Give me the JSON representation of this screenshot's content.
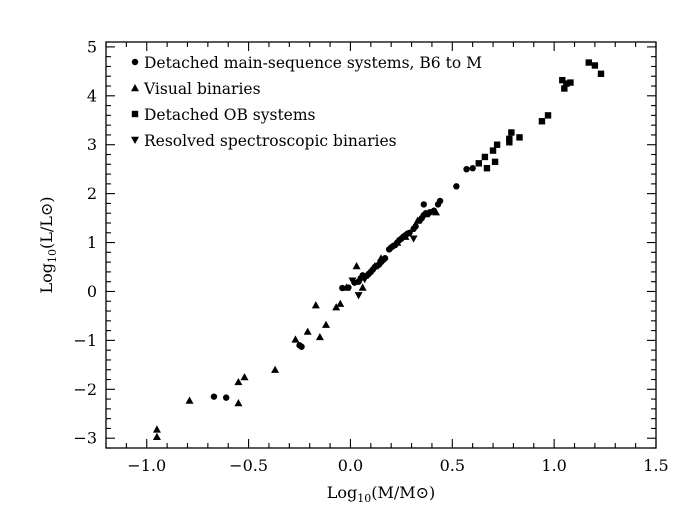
{
  "chart_data": {
    "type": "scatter",
    "xlabel": "Log10(M/M⊙)",
    "ylabel": "Log10(L/L⊙)",
    "xlim": [
      -1.2,
      1.5
    ],
    "ylim": [
      -3.2,
      5.1
    ],
    "x_ticks": [
      -1.0,
      -0.5,
      0.0,
      0.5,
      1.0,
      1.5
    ],
    "x_tick_labels": [
      "−1.0",
      "−0.5",
      "0.0",
      "0.5",
      "1.0",
      "1.5"
    ],
    "y_ticks": [
      -3,
      -2,
      -1,
      0,
      1,
      2,
      3,
      4,
      5
    ],
    "y_tick_labels": [
      "−3",
      "−2",
      "−1",
      "0",
      "1",
      "2",
      "3",
      "4",
      "5"
    ],
    "grid": false,
    "legend_position": "top-left",
    "marker_color": "#000000",
    "series": [
      {
        "name": "Detached main-sequence systems, B6 to M",
        "marker": "circle",
        "points": [
          [
            -0.67,
            -2.15
          ],
          [
            -0.61,
            -2.17
          ],
          [
            -0.24,
            -1.13
          ],
          [
            -0.25,
            -1.1
          ],
          [
            -0.04,
            0.07
          ],
          [
            -0.01,
            0.08
          ],
          [
            0.02,
            0.18
          ],
          [
            0.04,
            0.2
          ],
          [
            0.05,
            0.27
          ],
          [
            0.06,
            0.33
          ],
          [
            0.08,
            0.32
          ],
          [
            0.09,
            0.36
          ],
          [
            0.1,
            0.4
          ],
          [
            0.11,
            0.45
          ],
          [
            0.12,
            0.5
          ],
          [
            0.13,
            0.52
          ],
          [
            0.14,
            0.55
          ],
          [
            0.15,
            0.6
          ],
          [
            0.16,
            0.64
          ],
          [
            0.17,
            0.68
          ],
          [
            0.19,
            0.86
          ],
          [
            0.2,
            0.9
          ],
          [
            0.21,
            0.93
          ],
          [
            0.22,
            0.95
          ],
          [
            0.23,
            1.0
          ],
          [
            0.24,
            1.05
          ],
          [
            0.25,
            1.08
          ],
          [
            0.26,
            1.12
          ],
          [
            0.27,
            1.15
          ],
          [
            0.28,
            1.18
          ],
          [
            0.29,
            1.2
          ],
          [
            0.31,
            1.28
          ],
          [
            0.32,
            1.33
          ],
          [
            0.34,
            1.45
          ],
          [
            0.35,
            1.5
          ],
          [
            0.36,
            1.56
          ],
          [
            0.37,
            1.6
          ],
          [
            0.38,
            1.58
          ],
          [
            0.39,
            1.62
          ],
          [
            0.41,
            1.65
          ],
          [
            0.43,
            1.78
          ],
          [
            0.44,
            1.85
          ],
          [
            0.36,
            1.78
          ],
          [
            0.52,
            2.15
          ],
          [
            0.57,
            2.5
          ],
          [
            0.6,
            2.52
          ]
        ]
      },
      {
        "name": "Visual binaries",
        "marker": "triangle-up",
        "points": [
          [
            -0.95,
            -2.82
          ],
          [
            -0.95,
            -2.97
          ],
          [
            -0.79,
            -2.23
          ],
          [
            -0.55,
            -1.85
          ],
          [
            -0.52,
            -1.75
          ],
          [
            -0.55,
            -2.28
          ],
          [
            -0.37,
            -1.6
          ],
          [
            -0.27,
            -0.98
          ],
          [
            -0.21,
            -0.82
          ],
          [
            -0.15,
            -0.93
          ],
          [
            -0.17,
            -0.28
          ],
          [
            -0.12,
            -0.68
          ],
          [
            -0.07,
            -0.32
          ],
          [
            -0.05,
            -0.25
          ],
          [
            -0.02,
            0.08
          ],
          [
            0.03,
            0.52
          ],
          [
            0.06,
            0.08
          ],
          [
            0.12,
            0.52
          ],
          [
            0.15,
            0.68
          ],
          [
            0.23,
            1.0
          ],
          [
            0.27,
            1.12
          ],
          [
            0.33,
            1.45
          ],
          [
            0.42,
            1.62
          ]
        ]
      },
      {
        "name": "Detached OB systems",
        "marker": "square",
        "points": [
          [
            0.63,
            2.62
          ],
          [
            0.66,
            2.75
          ],
          [
            0.67,
            2.52
          ],
          [
            0.7,
            2.88
          ],
          [
            0.71,
            2.65
          ],
          [
            0.72,
            3.0
          ],
          [
            0.78,
            3.12
          ],
          [
            0.79,
            3.25
          ],
          [
            0.78,
            3.05
          ],
          [
            0.83,
            3.15
          ],
          [
            0.94,
            3.48
          ],
          [
            0.97,
            3.6
          ],
          [
            1.04,
            4.32
          ],
          [
            1.05,
            4.15
          ],
          [
            1.06,
            4.25
          ],
          [
            1.08,
            4.27
          ],
          [
            1.17,
            4.68
          ],
          [
            1.2,
            4.62
          ],
          [
            1.23,
            4.45
          ]
        ]
      },
      {
        "name": "Resolved spectroscopic binaries",
        "marker": "triangle-down",
        "points": [
          [
            0.01,
            0.22
          ],
          [
            0.04,
            -0.08
          ],
          [
            0.07,
            0.25
          ],
          [
            0.15,
            0.58
          ],
          [
            0.31,
            1.08
          ]
        ]
      }
    ]
  }
}
